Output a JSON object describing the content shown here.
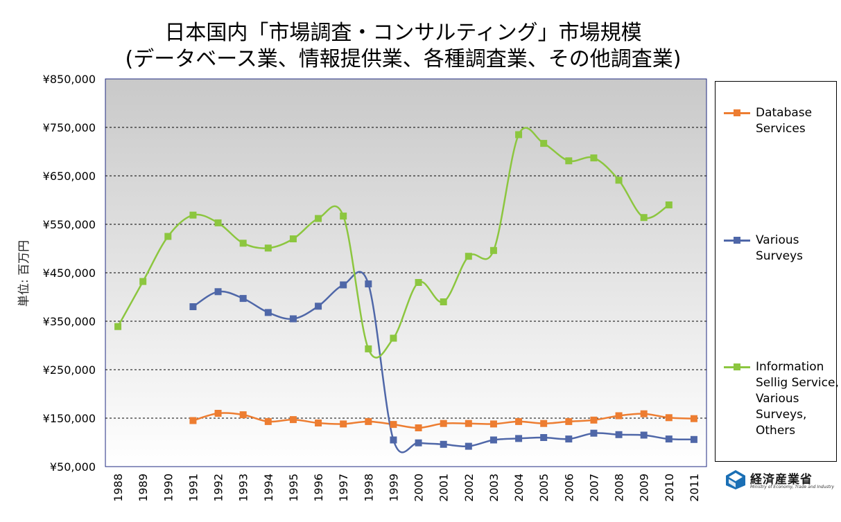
{
  "title_line1": "日本国内「市場調査・コンサルティング」市場規模",
  "title_line2": "(データベース業、情報提供業、各種調査業、その他調査業)",
  "logo": {
    "name": "経済産業省",
    "subtitle": "Ministry of Economy, Trade and Industry",
    "color": "#1a6fb5"
  },
  "chart_data": {
    "type": "line",
    "ylabel": "単位: 百万円",
    "xlabel": "",
    "ylim": [
      50000,
      850000
    ],
    "yticks": [
      50000,
      150000,
      250000,
      350000,
      450000,
      550000,
      650000,
      750000,
      850000
    ],
    "ytick_labels": [
      "¥50,000",
      "¥150,000",
      "¥250,000",
      "¥350,000",
      "¥450,000",
      "¥550,000",
      "¥650,000",
      "¥750,000",
      "¥850,000"
    ],
    "x": [
      "1988",
      "1989",
      "1990",
      "1991",
      "1992",
      "1993",
      "1994",
      "1995",
      "1996",
      "1997",
      "1998",
      "1999",
      "2000",
      "2001",
      "2002",
      "2003",
      "2004",
      "2005",
      "2006",
      "2007",
      "2008",
      "2009",
      "2010",
      "2011"
    ],
    "grid": "horizontal dashed",
    "legend_position": "right",
    "series": [
      {
        "name": "Database\nServices",
        "color": "#ed7d31",
        "values": [
          null,
          null,
          null,
          145000,
          160000,
          157000,
          143000,
          147000,
          140000,
          138000,
          143000,
          137000,
          130000,
          139000,
          139000,
          138000,
          143000,
          139000,
          143000,
          146000,
          155000,
          159000,
          151000,
          149000
        ]
      },
      {
        "name": "Various\nSurveys",
        "color": "#4f67a8",
        "values": [
          null,
          null,
          null,
          380000,
          411000,
          397000,
          368000,
          355000,
          381000,
          425000,
          427000,
          105000,
          99000,
          96000,
          92000,
          105000,
          108000,
          110000,
          107000,
          119000,
          116000,
          115000,
          107000,
          106000
        ]
      },
      {
        "name": "Information\nSellig Service,\nVarious\nSurveys,\nOthers",
        "color": "#8cc63f",
        "values": [
          339000,
          432000,
          525000,
          569000,
          553000,
          511000,
          501000,
          520000,
          562000,
          567000,
          293000,
          315000,
          430000,
          390000,
          484000,
          496000,
          735000,
          717000,
          681000,
          687000,
          641000,
          564000,
          590000,
          null
        ]
      }
    ]
  }
}
